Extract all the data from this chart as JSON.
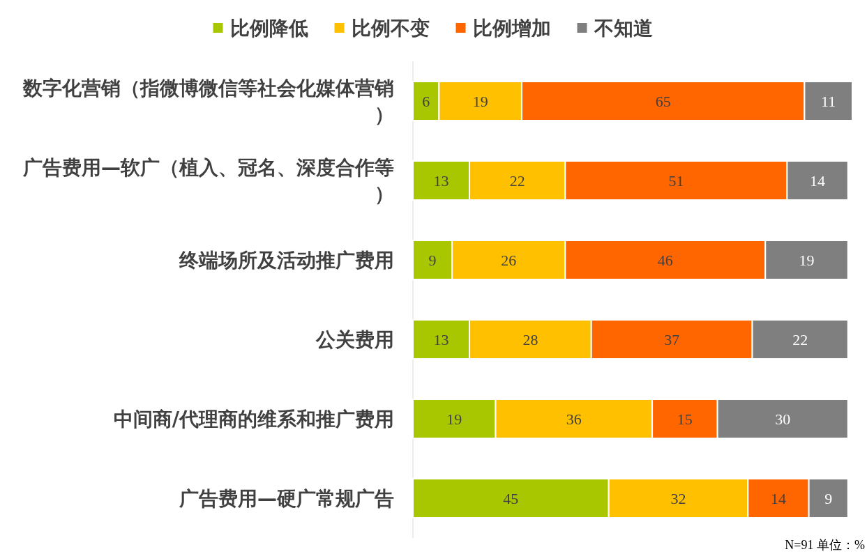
{
  "chart_data": {
    "type": "bar",
    "orientation": "horizontal",
    "stacked": true,
    "data_labels": true,
    "legend": "top",
    "grid": false,
    "categories": [
      "数字化营销（指微博微信等社会化媒体营销）",
      "广告费用—软广（植入、冠名、深度合作等）",
      "终端场所及活动推广费用",
      "公关费用",
      "中间商/代理商的维系和推广费用",
      "广告费用—硬广常规广告"
    ],
    "series": [
      {
        "name": "比例降低",
        "color": "#a9c700",
        "values": [
          6,
          13,
          9,
          13,
          19,
          45
        ]
      },
      {
        "name": "比例不变",
        "color": "#ffc000",
        "values": [
          19,
          22,
          26,
          28,
          36,
          32
        ]
      },
      {
        "name": "比例增加",
        "color": "#ff6600",
        "values": [
          65,
          51,
          46,
          37,
          15,
          14
        ]
      },
      {
        "name": "不知道",
        "color": "#7f7f7f",
        "values": [
          11,
          14,
          19,
          22,
          30,
          9
        ]
      }
    ],
    "annotations": [
      "N=91 单位：%"
    ]
  }
}
